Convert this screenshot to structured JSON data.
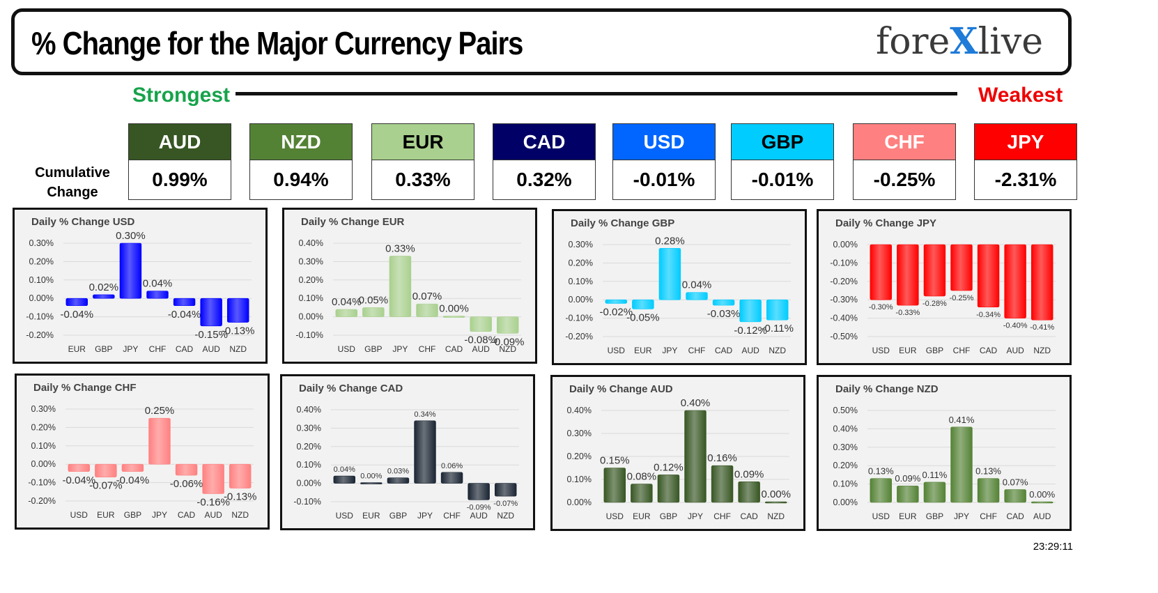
{
  "header": {
    "title": "% Change for the Major Currency Pairs",
    "logo_left": "fore",
    "logo_x": "X",
    "logo_right": "live"
  },
  "strength": {
    "strongest_label": "Strongest",
    "weakest_label": "Weakest"
  },
  "cumulative_label_line1": "Cumulative",
  "cumulative_label_line2": "Change",
  "currencies": [
    {
      "name": "AUD",
      "value": "0.99%",
      "color": "#375623",
      "text": "#ffffff"
    },
    {
      "name": "NZD",
      "value": "0.94%",
      "color": "#548235",
      "text": "#ffffff"
    },
    {
      "name": "EUR",
      "value": "0.33%",
      "color": "#a9d08e",
      "text": "#000000"
    },
    {
      "name": "CAD",
      "value": "0.32%",
      "color": "#000066",
      "text": "#ffffff"
    },
    {
      "name": "USD",
      "value": "-0.01%",
      "color": "#0066ff",
      "text": "#ffffff"
    },
    {
      "name": "GBP",
      "value": "-0.01%",
      "color": "#00ccff",
      "text": "#000000"
    },
    {
      "name": "CHF",
      "value": "-0.25%",
      "color": "#ff8080",
      "text": "#ffffff"
    },
    {
      "name": "JPY",
      "value": "-2.31%",
      "color": "#ff0000",
      "text": "#ffffff"
    }
  ],
  "timestamp": "23:29:11",
  "chart_data": [
    {
      "type": "bar",
      "title": "Daily % Change USD",
      "categories": [
        "EUR",
        "GBP",
        "JPY",
        "CHF",
        "CAD",
        "AUD",
        "NZD"
      ],
      "values": [
        -0.04,
        0.02,
        0.3,
        0.04,
        -0.04,
        -0.15,
        -0.13
      ],
      "labels": [
        "-0.04%",
        "0.02%",
        "0.30%",
        "0.04%",
        "-0.04%",
        "-0.15%",
        "-0.13%"
      ],
      "ylim": [
        -0.2,
        0.3
      ],
      "ticks": [
        0.3,
        0.2,
        0.1,
        0,
        -0.1,
        -0.2
      ],
      "tick_labels": [
        "0.30%",
        "0.20%",
        "0.10%",
        "0.00%",
        "-0.10%",
        "-0.20%"
      ],
      "color": "#0000ff",
      "label_size": 15
    },
    {
      "type": "bar",
      "title": "Daily % Change EUR",
      "categories": [
        "USD",
        "GBP",
        "JPY",
        "CHF",
        "CAD",
        "AUD",
        "NZD"
      ],
      "values": [
        0.04,
        0.05,
        0.33,
        0.07,
        0.0,
        -0.08,
        -0.09
      ],
      "labels": [
        "0.04%",
        "0.05%",
        "0.33%",
        "0.07%",
        "0.00%",
        "-0.08%",
        "-0.09%"
      ],
      "ylim": [
        -0.1,
        0.4
      ],
      "ticks": [
        0.4,
        0.3,
        0.2,
        0.1,
        0,
        -0.1
      ],
      "tick_labels": [
        "0.40%",
        "0.30%",
        "0.20%",
        "0.10%",
        "0.00%",
        "-0.10%"
      ],
      "color": "#a9d08e",
      "label_size": 15
    },
    {
      "type": "bar",
      "title": "Daily % Change GBP",
      "categories": [
        "USD",
        "EUR",
        "JPY",
        "CHF",
        "CAD",
        "AUD",
        "NZD"
      ],
      "values": [
        -0.02,
        -0.05,
        0.28,
        0.04,
        -0.03,
        -0.12,
        -0.11
      ],
      "labels": [
        "-0.02%",
        "-0.05%",
        "0.28%",
        "0.04%",
        "-0.03%",
        "-0.12%",
        "-0.11%"
      ],
      "ylim": [
        -0.2,
        0.3
      ],
      "ticks": [
        0.3,
        0.2,
        0.1,
        0,
        -0.1,
        -0.2
      ],
      "tick_labels": [
        "0.30%",
        "0.20%",
        "0.10%",
        "0.00%",
        "-0.10%",
        "-0.20%"
      ],
      "color": "#00ccff",
      "label_size": 15
    },
    {
      "type": "bar",
      "title": "Daily % Change JPY",
      "categories": [
        "USD",
        "EUR",
        "GBP",
        "CHF",
        "CAD",
        "AUD",
        "NZD"
      ],
      "values": [
        -0.3,
        -0.33,
        -0.28,
        -0.25,
        -0.34,
        -0.4,
        -0.41
      ],
      "labels": [
        "-0.30%",
        "-0.33%",
        "-0.28%",
        "-0.25%",
        "-0.34%",
        "-0.40%",
        "-0.41%"
      ],
      "ylim": [
        -0.5,
        0.0
      ],
      "ticks": [
        0,
        -0.1,
        -0.2,
        -0.3,
        -0.4,
        -0.5
      ],
      "tick_labels": [
        "0.00%",
        "-0.10%",
        "-0.20%",
        "-0.30%",
        "-0.40%",
        "-0.50%"
      ],
      "color": "#ff0000",
      "label_size": 11
    },
    {
      "type": "bar",
      "title": "Daily % Change CHF",
      "categories": [
        "USD",
        "EUR",
        "GBP",
        "JPY",
        "CAD",
        "AUD",
        "NZD"
      ],
      "values": [
        -0.04,
        -0.07,
        -0.04,
        0.25,
        -0.06,
        -0.16,
        -0.13
      ],
      "labels": [
        "-0.04%",
        "-0.07%",
        "-0.04%",
        "0.25%",
        "-0.06%",
        "-0.16%",
        "-0.13%"
      ],
      "ylim": [
        -0.2,
        0.3
      ],
      "ticks": [
        0.3,
        0.2,
        0.1,
        0,
        -0.1,
        -0.2
      ],
      "tick_labels": [
        "0.30%",
        "0.20%",
        "0.10%",
        "0.00%",
        "-0.10%",
        "-0.20%"
      ],
      "color": "#ff8080",
      "label_size": 15
    },
    {
      "type": "bar",
      "title": "Daily % Change CAD",
      "categories": [
        "USD",
        "EUR",
        "GBP",
        "JPY",
        "CHF",
        "AUD",
        "NZD"
      ],
      "values": [
        0.04,
        0.0,
        0.03,
        0.34,
        0.06,
        -0.09,
        -0.07
      ],
      "labels": [
        "0.04%",
        "0.00%",
        "0.03%",
        "0.34%",
        "0.06%",
        "-0.09%",
        "-0.07%"
      ],
      "ylim": [
        -0.1,
        0.4
      ],
      "ticks": [
        0.4,
        0.3,
        0.2,
        0.1,
        0,
        -0.1
      ],
      "tick_labels": [
        "0.40%",
        "0.30%",
        "0.20%",
        "0.10%",
        "0.00%",
        "-0.10%"
      ],
      "color": "#1a2533",
      "label_size": 11
    },
    {
      "type": "bar",
      "title": "Daily % Change AUD",
      "categories": [
        "USD",
        "EUR",
        "GBP",
        "JPY",
        "CHF",
        "CAD",
        "NZD"
      ],
      "values": [
        0.15,
        0.08,
        0.12,
        0.4,
        0.16,
        0.09,
        0.0
      ],
      "labels": [
        "0.15%",
        "0.08%",
        "0.12%",
        "0.40%",
        "0.16%",
        "0.09%",
        "0.00%"
      ],
      "ylim": [
        0.0,
        0.4
      ],
      "ticks": [
        0.4,
        0.3,
        0.2,
        0.1,
        0
      ],
      "tick_labels": [
        "0.40%",
        "0.30%",
        "0.20%",
        "0.10%",
        "0.00%"
      ],
      "color": "#375623",
      "label_size": 15
    },
    {
      "type": "bar",
      "title": "Daily % Change NZD",
      "categories": [
        "USD",
        "EUR",
        "GBP",
        "JPY",
        "CHF",
        "CAD",
        "AUD"
      ],
      "values": [
        0.13,
        0.09,
        0.11,
        0.41,
        0.13,
        0.07,
        0.0
      ],
      "labels": [
        "0.13%",
        "0.09%",
        "0.11%",
        "0.41%",
        "0.13%",
        "0.07%",
        "0.00%"
      ],
      "ylim": [
        0.0,
        0.5
      ],
      "ticks": [
        0.5,
        0.4,
        0.3,
        0.2,
        0.1,
        0
      ],
      "tick_labels": [
        "0.50%",
        "0.40%",
        "0.30%",
        "0.20%",
        "0.10%",
        "0.00%"
      ],
      "color": "#548235",
      "label_size": 13
    }
  ]
}
